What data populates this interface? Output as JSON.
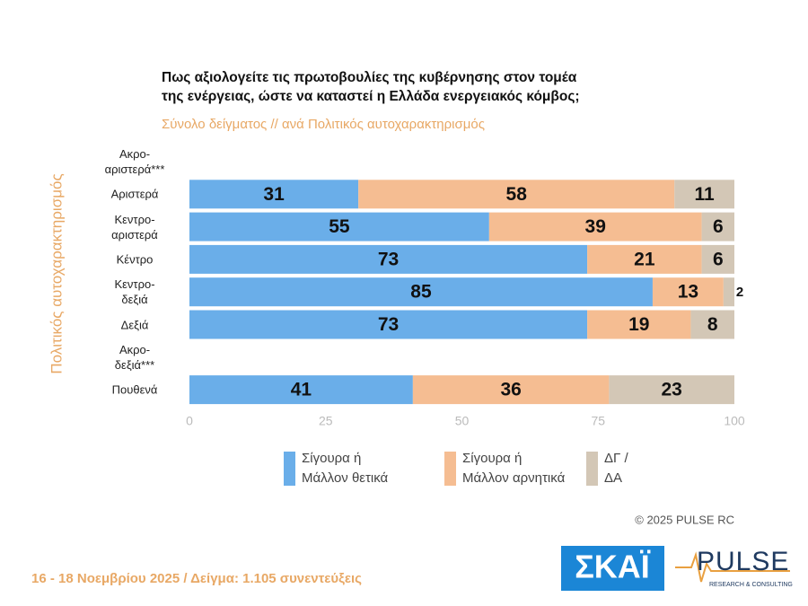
{
  "chart_data": {
    "type": "bar",
    "orientation": "horizontal",
    "stacked": true,
    "title": "Πως αξιολογείτε τις πρωτοβουλίες της κυβέρνησης στον τομέα\nτης ενέργειας, ώστε να καταστεί η Ελλάδα ενεργειακός κόμβος;",
    "subtitle": "Σύνολο δείγματος // ανά Πολιτικός αυτοχαρακτηρισμός",
    "ylabel": "Πολιτικός αυτοχαρακτηρισμός",
    "categories": [
      "Ακρο-\nαριστερά***",
      "Αριστερά",
      "Κεντρο-\nαριστερά",
      "Κέντρο",
      "Κεντρο-\nδεξιά",
      "Δεξιά",
      "Ακρο-\nδεξιά***",
      "Πουθενά"
    ],
    "series": [
      {
        "name": "Σίγουρα ή\nΜάλλον θετικά",
        "color": "#6aaee9",
        "values": [
          null,
          31,
          55,
          73,
          85,
          73,
          null,
          41
        ]
      },
      {
        "name": "Σίγουρα ή\nΜάλλον αρνητικά",
        "color": "#f5bd92",
        "values": [
          null,
          58,
          39,
          21,
          13,
          19,
          null,
          36
        ]
      },
      {
        "name": "ΔΓ /\nΔΑ",
        "color": "#d3c7b6",
        "values": [
          null,
          11,
          6,
          6,
          2,
          8,
          null,
          23
        ]
      }
    ],
    "xlim": [
      0,
      100
    ],
    "xticks": [
      0,
      25,
      50,
      75,
      100
    ],
    "grid": false
  },
  "copyright": "© 2025  PULSE RC",
  "footer": "16 - 18 Νοεμβρίου 2025  /  Δείγμα:  1.105 συνεντεύξεις",
  "logo_skai": "ΣΚΑΪ",
  "logo_pulse": {
    "name": "PULSE",
    "tagline": "RESEARCH & CONSULTING"
  }
}
